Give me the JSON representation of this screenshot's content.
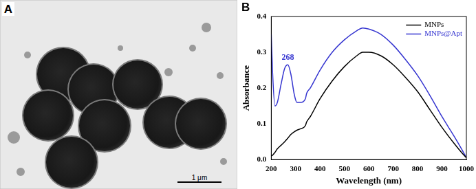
{
  "panel_a": {
    "label": "A",
    "scale_bar_label": "1 μm"
  },
  "chart_data": {
    "type": "line",
    "panel_label": "B",
    "x_label": "Wavelength (nm)",
    "y_label": "Absorbance",
    "x": [
      200,
      205,
      215,
      225,
      240,
      255,
      268,
      280,
      295,
      305,
      320,
      340,
      345,
      360,
      400,
      450,
      500,
      550,
      575,
      600,
      650,
      700,
      750,
      800,
      850,
      900,
      950,
      980,
      1000
    ],
    "series": [
      {
        "name": "MNPs",
        "color": "#000000",
        "values": [
          0.01,
          0.012,
          0.02,
          0.03,
          0.04,
          0.05,
          0.06,
          0.07,
          0.078,
          0.082,
          0.086,
          0.095,
          0.105,
          0.12,
          0.17,
          0.22,
          0.26,
          0.29,
          0.3,
          0.3,
          0.29,
          0.265,
          0.23,
          0.19,
          0.14,
          0.09,
          0.045,
          0.02,
          0.005
        ]
      },
      {
        "name": "MNPs@Apt",
        "color": "#3535d0",
        "values": [
          0.35,
          0.25,
          0.15,
          0.16,
          0.21,
          0.255,
          0.265,
          0.24,
          0.18,
          0.16,
          0.16,
          0.17,
          0.185,
          0.2,
          0.25,
          0.3,
          0.335,
          0.36,
          0.368,
          0.365,
          0.35,
          0.32,
          0.28,
          0.235,
          0.18,
          0.12,
          0.065,
          0.03,
          0.005
        ]
      }
    ],
    "annotations": [
      "268"
    ],
    "xlim": [
      200,
      1000
    ],
    "xticks": [
      200,
      300,
      400,
      500,
      600,
      700,
      800,
      900,
      1000
    ],
    "ylim": [
      0,
      0.4
    ],
    "yticks": [
      {
        "value": 0,
        "label": "0.0"
      },
      0.1,
      0.2,
      0.3,
      0.4
    ],
    "grid": false,
    "legend": "upper right"
  }
}
